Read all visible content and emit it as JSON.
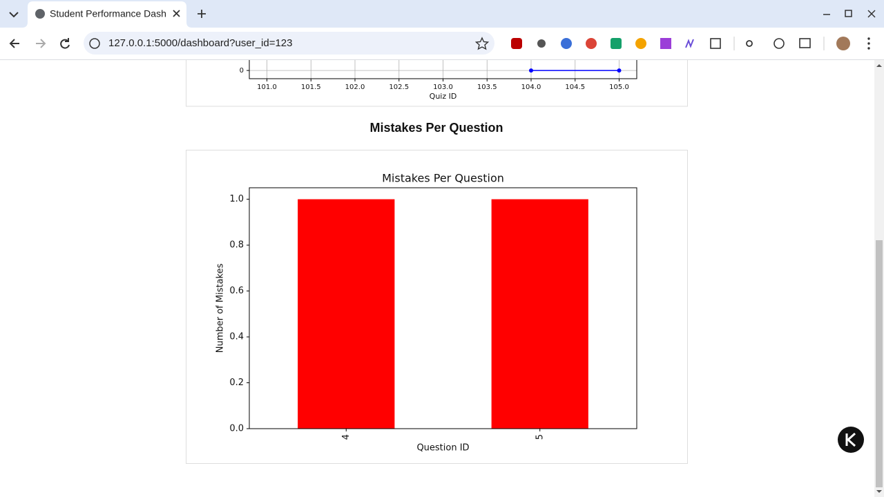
{
  "browser": {
    "tab_title": "Student Performance Dash",
    "url": "127.0.0.1:5000/dashboard?user_id=123"
  },
  "page": {
    "section_title": "Mistakes Per Question"
  },
  "chart_data": [
    {
      "type": "line",
      "xlabel": "Quiz ID",
      "x": [
        104,
        105
      ],
      "values": [
        0,
        0
      ],
      "color": "#0000ff",
      "xlim": [
        100.8,
        105.2
      ],
      "xticks": [
        {
          "value": 101,
          "label": "101.0"
        },
        101.5,
        {
          "value": 102,
          "label": "102.0"
        },
        102.5,
        {
          "value": 103,
          "label": "103.0"
        },
        103.5,
        {
          "value": 104,
          "label": "104.0"
        },
        104.5,
        {
          "value": 105,
          "label": "105.0"
        }
      ],
      "ylim": [
        -0.35,
        5
      ],
      "yticks": [
        0
      ],
      "grid": true
    },
    {
      "type": "bar",
      "title": "Mistakes Per Question",
      "xlabel": "Question ID",
      "ylabel": "Number of Mistakes",
      "categories": [
        "4",
        "5"
      ],
      "values": [
        1,
        1
      ],
      "color": "#ff0000",
      "ylim": [
        0,
        1.05
      ],
      "yticks": [
        {
          "value": 0,
          "label": "0.0"
        },
        0.2,
        0.4,
        0.6,
        0.8,
        {
          "value": 1,
          "label": "1.0"
        }
      ],
      "grid": false
    }
  ]
}
